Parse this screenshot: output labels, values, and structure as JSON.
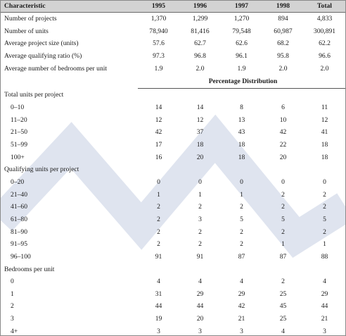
{
  "columns": [
    "Characteristic",
    "1995",
    "1996",
    "1997",
    "1998",
    "Total"
  ],
  "summary_rows": [
    {
      "label": "Number of projects",
      "values": [
        "1,370",
        "1,299",
        "1,270",
        "894",
        "4,833"
      ]
    },
    {
      "label": "Number of units",
      "values": [
        "78,940",
        "81,416",
        "79,548",
        "60,987",
        "300,891"
      ]
    },
    {
      "label": "Average project size (units)",
      "values": [
        "57.6",
        "62.7",
        "62.6",
        "68.2",
        "62.2"
      ]
    },
    {
      "label": "Average qualifying ratio (%)",
      "values": [
        "97.3",
        "96.8",
        "96.1",
        "95.8",
        "96.6"
      ]
    },
    {
      "label": "Average number of bedrooms per unit",
      "values": [
        "1.9",
        "2.0",
        "1.9",
        "2.0",
        "2.0"
      ]
    }
  ],
  "distribution_heading": "Percentage Distribution",
  "sections": [
    {
      "title": "Total units per project",
      "rows": [
        {
          "label": "0–10",
          "values": [
            "14",
            "14",
            "8",
            "6",
            "11"
          ]
        },
        {
          "label": "11–20",
          "values": [
            "12",
            "12",
            "13",
            "10",
            "12"
          ]
        },
        {
          "label": "21–50",
          "values": [
            "42",
            "37",
            "43",
            "42",
            "41"
          ]
        },
        {
          "label": "51–99",
          "values": [
            "17",
            "18",
            "18",
            "22",
            "18"
          ]
        },
        {
          "label": "100+",
          "values": [
            "16",
            "20",
            "18",
            "20",
            "18"
          ]
        }
      ]
    },
    {
      "title": "Qualifying units per project",
      "rows": [
        {
          "label": "0–20",
          "values": [
            "0",
            "0",
            "0",
            "0",
            "0"
          ]
        },
        {
          "label": "21–40",
          "values": [
            "1",
            "1",
            "1",
            "2",
            "2"
          ]
        },
        {
          "label": "41–60",
          "values": [
            "2",
            "2",
            "2",
            "2",
            "2"
          ]
        },
        {
          "label": "61–80",
          "values": [
            "2",
            "3",
            "5",
            "5",
            "5"
          ]
        },
        {
          "label": "81–90",
          "values": [
            "2",
            "2",
            "2",
            "2",
            "2"
          ]
        },
        {
          "label": "91–95",
          "values": [
            "2",
            "2",
            "2",
            "1",
            "1"
          ]
        },
        {
          "label": "96–100",
          "values": [
            "91",
            "91",
            "87",
            "87",
            "88"
          ]
        }
      ]
    },
    {
      "title": "Bedrooms per unit",
      "rows": [
        {
          "label": "0",
          "values": [
            "4",
            "4",
            "4",
            "2",
            "4"
          ]
        },
        {
          "label": "1",
          "values": [
            "31",
            "29",
            "29",
            "25",
            "29"
          ]
        },
        {
          "label": "2",
          "values": [
            "44",
            "44",
            "42",
            "45",
            "44"
          ]
        },
        {
          "label": "3",
          "values": [
            "19",
            "20",
            "21",
            "25",
            "21"
          ]
        },
        {
          "label": "4+",
          "values": [
            "3",
            "3",
            "3",
            "4",
            "3"
          ]
        }
      ]
    }
  ],
  "colors": {
    "header_background": "#d3d3d3",
    "watermark": "#dfe4ef"
  }
}
